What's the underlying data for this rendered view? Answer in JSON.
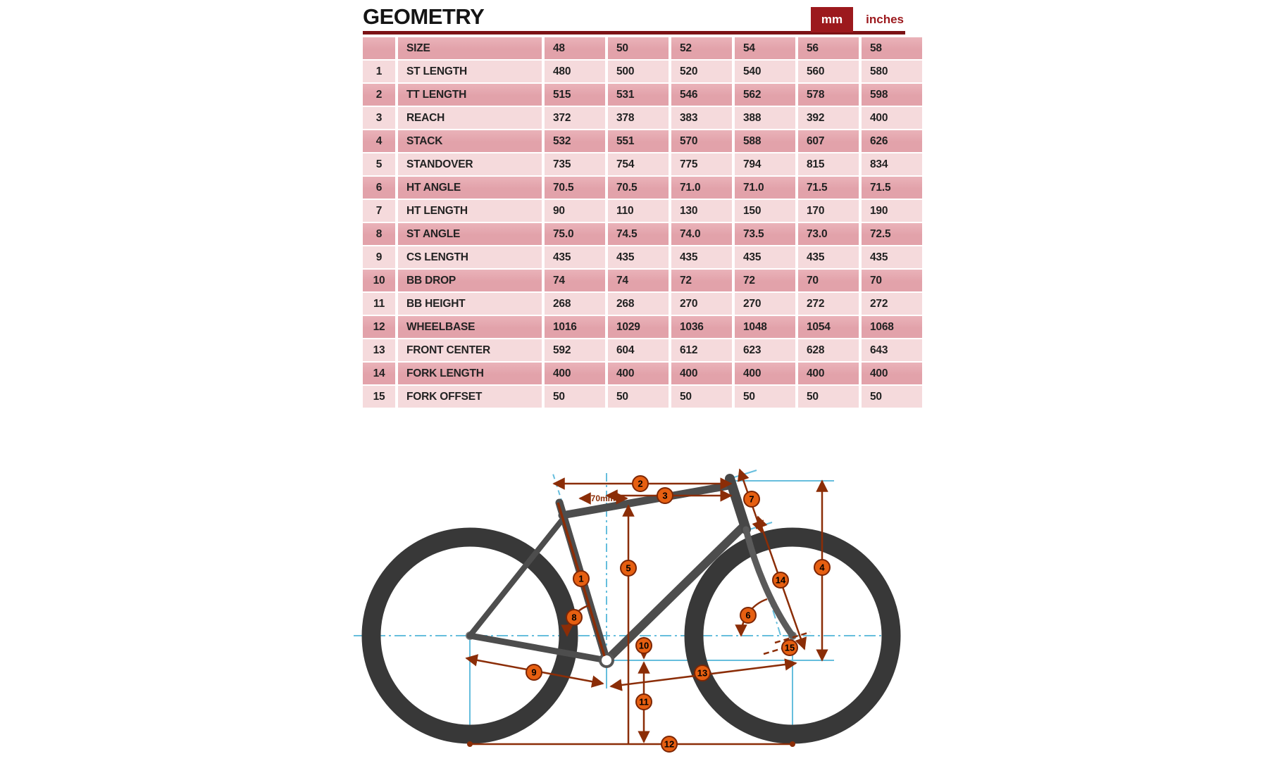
{
  "header": {
    "title": "GEOMETRY",
    "units": [
      {
        "label": "mm",
        "active": true
      },
      {
        "label": "inches",
        "active": false
      }
    ]
  },
  "table": {
    "size_label": "SIZE",
    "columns": [
      "48",
      "50",
      "52",
      "54",
      "56",
      "58"
    ],
    "rows": [
      {
        "num": "1",
        "label": "ST LENGTH",
        "values": [
          "480",
          "500",
          "520",
          "540",
          "560",
          "580"
        ]
      },
      {
        "num": "2",
        "label": "TT LENGTH",
        "values": [
          "515",
          "531",
          "546",
          "562",
          "578",
          "598"
        ]
      },
      {
        "num": "3",
        "label": "REACH",
        "values": [
          "372",
          "378",
          "383",
          "388",
          "392",
          "400"
        ]
      },
      {
        "num": "4",
        "label": "STACK",
        "values": [
          "532",
          "551",
          "570",
          "588",
          "607",
          "626"
        ]
      },
      {
        "num": "5",
        "label": "STANDOVER",
        "values": [
          "735",
          "754",
          "775",
          "794",
          "815",
          "834"
        ]
      },
      {
        "num": "6",
        "label": "HT ANGLE",
        "values": [
          "70.5",
          "70.5",
          "71.0",
          "71.0",
          "71.5",
          "71.5"
        ]
      },
      {
        "num": "7",
        "label": "HT LENGTH",
        "values": [
          "90",
          "110",
          "130",
          "150",
          "170",
          "190"
        ]
      },
      {
        "num": "8",
        "label": "ST ANGLE",
        "values": [
          "75.0",
          "74.5",
          "74.0",
          "73.5",
          "73.0",
          "72.5"
        ]
      },
      {
        "num": "9",
        "label": "CS LENGTH",
        "values": [
          "435",
          "435",
          "435",
          "435",
          "435",
          "435"
        ]
      },
      {
        "num": "10",
        "label": "BB DROP",
        "values": [
          "74",
          "74",
          "72",
          "72",
          "70",
          "70"
        ]
      },
      {
        "num": "11",
        "label": "BB HEIGHT",
        "values": [
          "268",
          "268",
          "270",
          "270",
          "272",
          "272"
        ]
      },
      {
        "num": "12",
        "label": "WHEELBASE",
        "values": [
          "1016",
          "1029",
          "1036",
          "1048",
          "1054",
          "1068"
        ]
      },
      {
        "num": "13",
        "label": "FRONT CENTER",
        "values": [
          "592",
          "604",
          "612",
          "623",
          "628",
          "643"
        ]
      },
      {
        "num": "14",
        "label": "FORK LENGTH",
        "values": [
          "400",
          "400",
          "400",
          "400",
          "400",
          "400"
        ]
      },
      {
        "num": "15",
        "label": "FORK OFFSET",
        "values": [
          "50",
          "50",
          "50",
          "50",
          "50",
          "50"
        ]
      }
    ]
  },
  "diagram": {
    "annotation": "70mm",
    "markers": [
      "1",
      "2",
      "3",
      "4",
      "5",
      "6",
      "7",
      "8",
      "9",
      "10",
      "11",
      "12",
      "13",
      "14",
      "15"
    ]
  },
  "colors": {
    "accent_dark_red": "#9c191d",
    "rule_maroon": "#7c1215",
    "row_dark_pink": "#e2a2aa",
    "row_light_pink": "#f5dadc",
    "dimension_line": "#8b2d07",
    "marker_orange": "#e65f11",
    "reference_blue": "#66bedd",
    "frame_gray": "#4d4d4d"
  }
}
